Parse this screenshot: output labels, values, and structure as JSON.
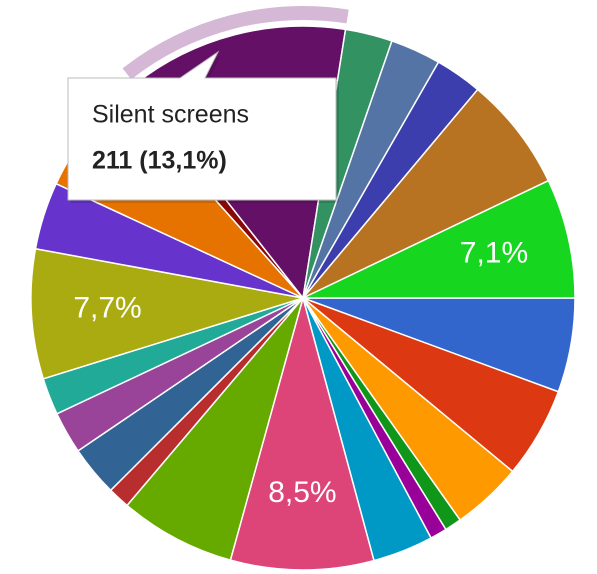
{
  "chart_data": {
    "type": "pie",
    "categories": [
      null,
      null,
      null,
      null,
      null,
      null,
      null,
      null,
      null,
      null,
      null,
      null,
      null,
      null,
      null,
      null,
      "Silent screens",
      null,
      null,
      null,
      null,
      null
    ],
    "values": [
      5.6,
      5.4,
      4.2,
      1.0,
      1.0,
      3.6,
      8.5,
      6.9,
      1.3,
      3.0,
      2.5,
      2.2,
      7.7,
      4.0,
      6.5,
      1.0,
      13.1,
      2.8,
      3.0,
      2.8,
      6.8,
      7.1
    ],
    "value_labels": [
      null,
      null,
      null,
      null,
      null,
      null,
      "8,5%",
      null,
      null,
      null,
      null,
      null,
      "7,7%",
      null,
      null,
      null,
      null,
      null,
      null,
      null,
      null,
      "7,1%"
    ],
    "colors": [
      "#3366cc",
      "#dc3912",
      "#ff9900",
      "#109618",
      "#990099",
      "#0099c6",
      "#dd4477",
      "#66aa00",
      "#b82e2e",
      "#316395",
      "#994499",
      "#22aa99",
      "#aaaa11",
      "#6633cc",
      "#e67300",
      "#8b0707",
      "#651067",
      "#329262",
      "#5574a6",
      "#3b3eac",
      "#b77322",
      "#16d620"
    ],
    "tooltip": {
      "text": "211 (13,1%)"
    }
  }
}
